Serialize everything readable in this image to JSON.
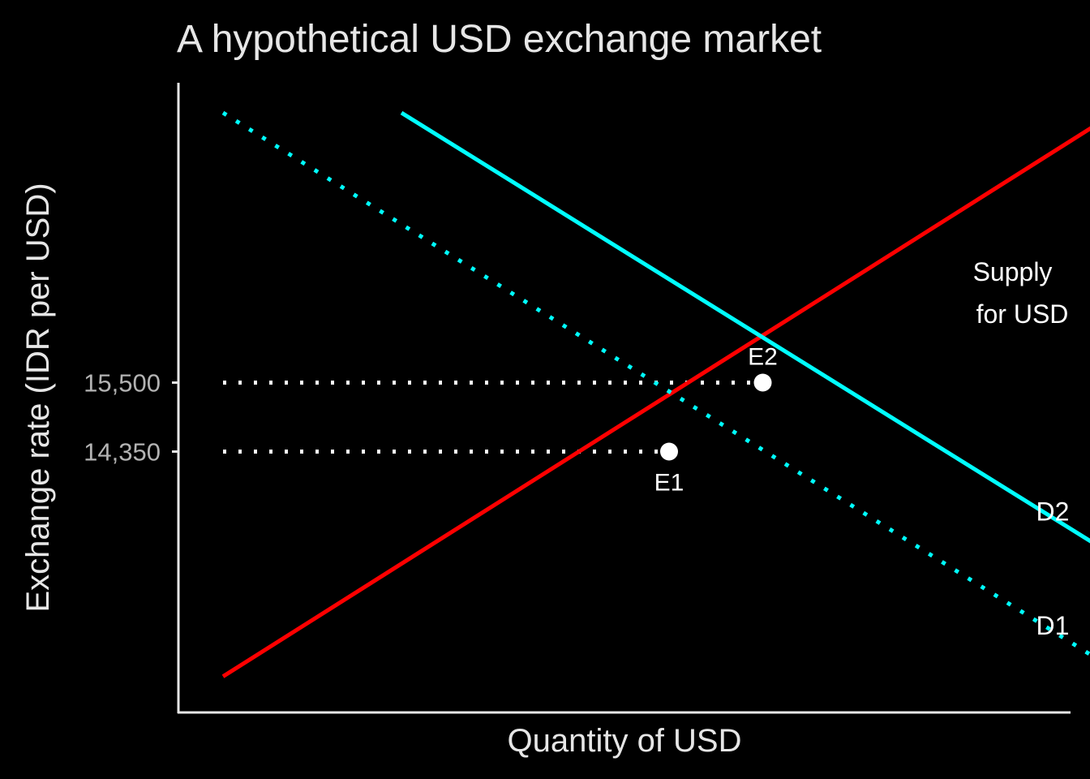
{
  "chart_data": {
    "type": "line",
    "title": "A hypothetical USD exchange market",
    "xlabel": "Quantity of USD",
    "ylabel": "Exchange rate (IDR per USD)",
    "xlim": [
      0,
      10
    ],
    "ylim": [
      10000,
      20500
    ],
    "y_ticks": [
      {
        "value": 14350,
        "label": "14,350"
      },
      {
        "value": 15500,
        "label": "15,500"
      }
    ],
    "grid": false,
    "colors": {
      "background": "#000000",
      "supply": "#ff0000",
      "demand": "#00ffff",
      "guides": "#ffffff",
      "axis": "#e6e6e6",
      "tick_text": "#b3b3b3"
    },
    "series": [
      {
        "key": "supply",
        "name": "Supply for USD",
        "label_lines": [
          "Supply",
          "for USD"
        ],
        "style": "solid",
        "x": [
          0.5,
          10.5
        ],
        "y": [
          10600,
          20000
        ]
      },
      {
        "key": "d1",
        "name": "D1",
        "style": "dotted",
        "x": [
          0.5,
          10.4
        ],
        "y": [
          20000,
          10800
        ]
      },
      {
        "key": "d2",
        "name": "D2",
        "style": "solid",
        "x": [
          2.5,
          10.5
        ],
        "y": [
          20000,
          12600
        ]
      }
    ],
    "points": [
      {
        "name": "E1",
        "x": 5.5,
        "y": 14350,
        "label_position": "below"
      },
      {
        "name": "E2",
        "x": 6.55,
        "y": 15500,
        "label_position": "above"
      }
    ],
    "annotations": [
      {
        "text_key": "supply",
        "x": 9.35,
        "y": 17200
      },
      {
        "text": "D2",
        "x": 9.8,
        "y": 13200
      },
      {
        "text": "D1",
        "x": 9.8,
        "y": 11300
      }
    ]
  }
}
